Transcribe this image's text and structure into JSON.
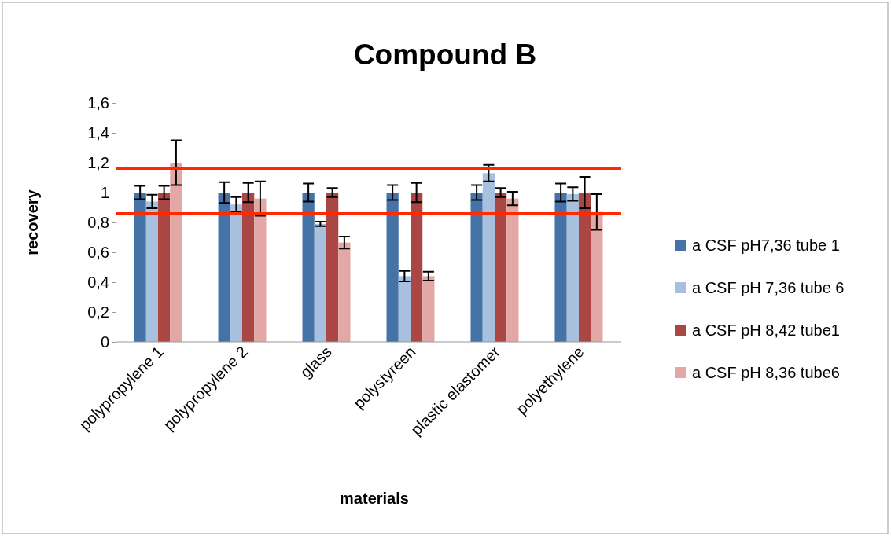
{
  "chart_data": {
    "type": "bar",
    "title": "Compound B",
    "xlabel": "materials",
    "ylabel": "recovery",
    "categories": [
      "polypropylene 1",
      "polypropylene 2",
      "glass",
      "polystyreen",
      "plastic elastomer",
      "polyethylene"
    ],
    "series": [
      {
        "name": "a CSF pH7,36 tube 1",
        "color": "#4572a7",
        "values": [
          1.0,
          1.0,
          1.0,
          1.0,
          1.0,
          1.0
        ],
        "errors": [
          0.045,
          0.07,
          0.06,
          0.05,
          0.05,
          0.06
        ]
      },
      {
        "name": "a CSF pH 7,36 tube 6",
        "color": "#a7c0de",
        "values": [
          0.94,
          0.92,
          0.79,
          0.44,
          1.13,
          0.99
        ],
        "errors": [
          0.045,
          0.05,
          0.015,
          0.035,
          0.055,
          0.045
        ]
      },
      {
        "name": "a CSF pH 8,42 tube1",
        "color": "#aa4643",
        "values": [
          1.0,
          1.0,
          1.0,
          1.0,
          1.0,
          1.0
        ],
        "errors": [
          0.045,
          0.065,
          0.03,
          0.065,
          0.03,
          0.105
        ]
      },
      {
        "name": "a CSF pH 8,36 tube6",
        "color": "#e3a7a5",
        "values": [
          1.2,
          0.96,
          0.665,
          0.44,
          0.96,
          0.87
        ],
        "errors": [
          0.15,
          0.115,
          0.04,
          0.03,
          0.045,
          0.12
        ]
      }
    ],
    "ylim": [
      0,
      1.6
    ],
    "yticks": [
      0,
      {
        "value": 0.2,
        "label": "0,2"
      },
      {
        "value": 0.4,
        "label": "0,4"
      },
      {
        "value": 0.6,
        "label": "0,6"
      },
      {
        "value": 0.8,
        "label": "0,8"
      },
      1,
      {
        "value": 1.2,
        "label": "1,2"
      },
      {
        "value": 1.4,
        "label": "1,4"
      },
      {
        "value": 1.6,
        "label": "1,6"
      }
    ],
    "ref_lines": [
      {
        "axis": "y",
        "value": 1.16,
        "color": "#ff2a00"
      },
      {
        "axis": "y",
        "value": 0.86,
        "color": "#ff2a00"
      }
    ],
    "grid": false,
    "legend": "right"
  }
}
